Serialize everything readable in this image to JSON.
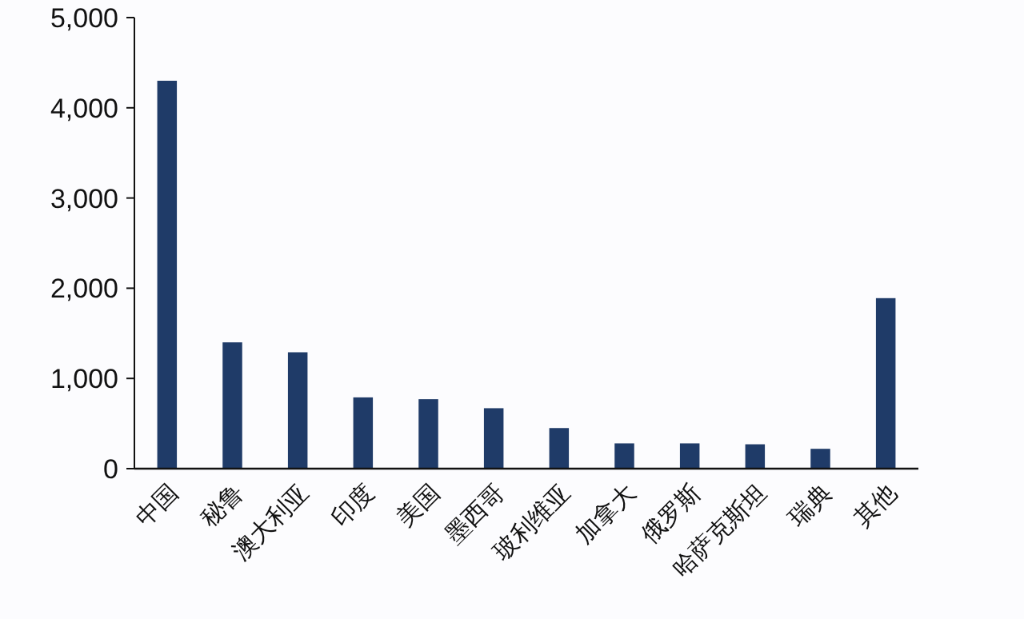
{
  "chart_data": {
    "type": "bar",
    "categories": [
      "中国",
      "秘鲁",
      "澳大利亚",
      "印度",
      "美国",
      "墨西哥",
      "玻利维亚",
      "加拿大",
      "俄罗斯",
      "哈萨克斯坦",
      "瑞典",
      "其他"
    ],
    "values": [
      4300,
      1400,
      1290,
      790,
      770,
      670,
      450,
      280,
      280,
      270,
      220,
      1890
    ],
    "color": "#1f3b68",
    "ylim": [
      0,
      5000
    ],
    "yticks": [
      0,
      {
        "value": 1000,
        "label": "1,000"
      },
      {
        "value": 2000,
        "label": "2,000"
      },
      {
        "value": 3000,
        "label": "3,000"
      },
      {
        "value": 4000,
        "label": "4,000"
      },
      {
        "value": 5000,
        "label": "5,000"
      }
    ],
    "grid": false
  }
}
